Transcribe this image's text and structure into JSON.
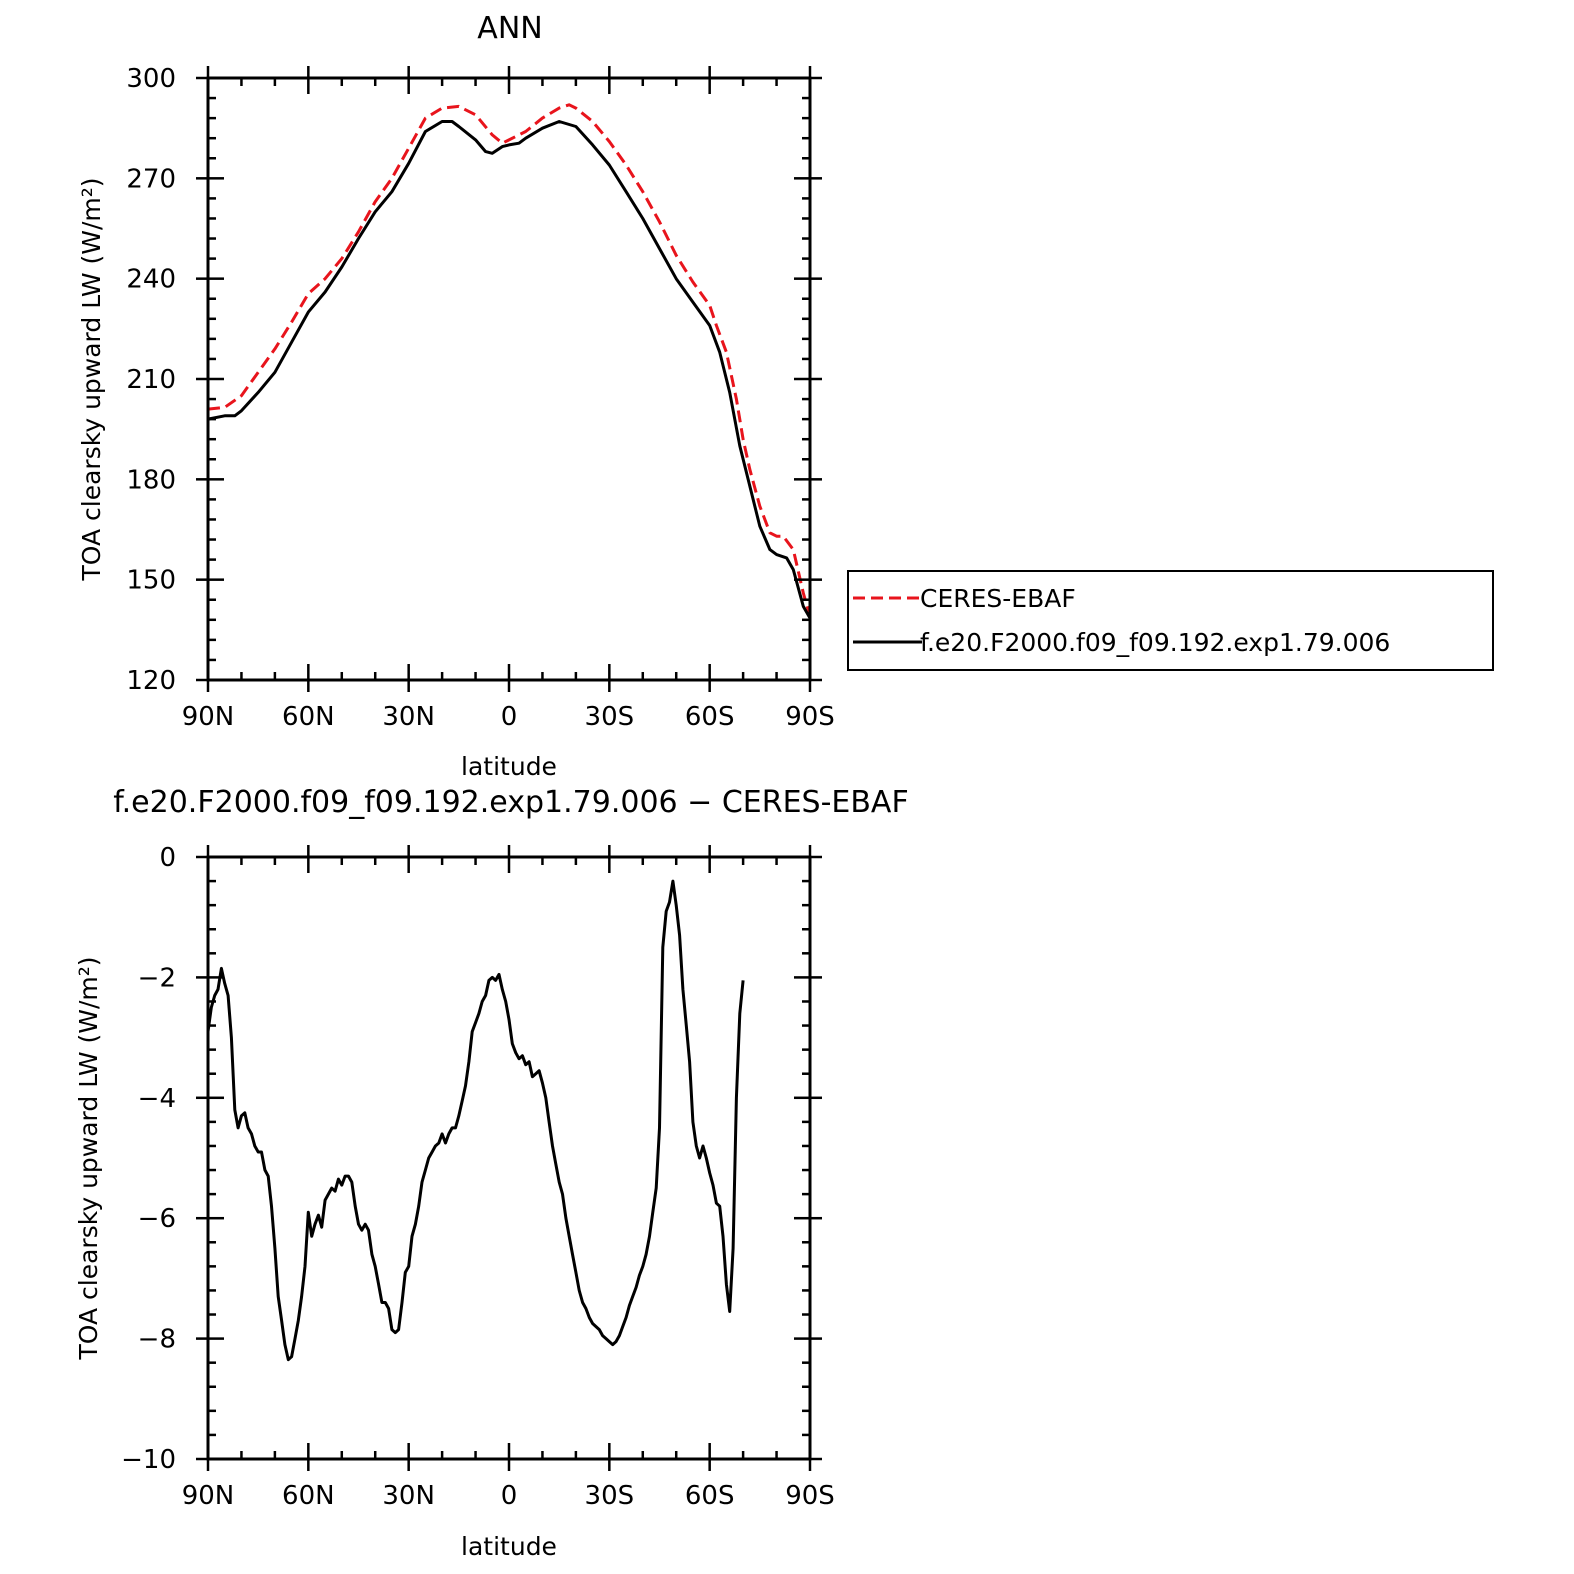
{
  "chart_data": [
    {
      "type": "line",
      "title": "ANN",
      "xlabel": "latitude",
      "ylabel": "TOA clearsky upward LW (W/m²)",
      "xlim": [
        90,
        -90
      ],
      "ylim": [
        120,
        300
      ],
      "x_tick_values": [
        90,
        60,
        30,
        0,
        -30,
        -60,
        -90
      ],
      "x_tick_labels": [
        "90N",
        "60N",
        "30N",
        "0",
        "30S",
        "60S",
        "90S"
      ],
      "y_ticks": [
        120,
        150,
        180,
        210,
        240,
        270,
        300
      ],
      "grid": false,
      "legend_position": "right",
      "series": [
        {
          "name": "CERES-EBAF",
          "color": "#e8141c",
          "dash": true,
          "points": [
            [
              90,
              201
            ],
            [
              85,
              201.5
            ],
            [
              80,
              205
            ],
            [
              75,
              212
            ],
            [
              70,
              219
            ],
            [
              65,
              227
            ],
            [
              60,
              235.5
            ],
            [
              55,
              240
            ],
            [
              50,
              246
            ],
            [
              45,
              254
            ],
            [
              40,
              263
            ],
            [
              35,
              270
            ],
            [
              30,
              279
            ],
            [
              25,
              288
            ],
            [
              20,
              291
            ],
            [
              15,
              291.5
            ],
            [
              10,
              289
            ],
            [
              5,
              283
            ],
            [
              2,
              280.5
            ],
            [
              0,
              281.5
            ],
            [
              -5,
              284
            ],
            [
              -10,
              288
            ],
            [
              -15,
              291
            ],
            [
              -18,
              292
            ],
            [
              -20,
              291
            ],
            [
              -25,
              287
            ],
            [
              -30,
              281
            ],
            [
              -35,
              274
            ],
            [
              -40,
              266
            ],
            [
              -45,
              257
            ],
            [
              -50,
              247
            ],
            [
              -55,
              239
            ],
            [
              -60,
              232
            ],
            [
              -62,
              226
            ],
            [
              -65,
              218
            ],
            [
              -68,
              204
            ],
            [
              -70,
              192
            ],
            [
              -72,
              183
            ],
            [
              -75,
              172
            ],
            [
              -78,
              164
            ],
            [
              -80,
              163
            ],
            [
              -82,
              163
            ],
            [
              -85,
              159
            ],
            [
              -88,
              146
            ],
            [
              -90,
              139
            ]
          ]
        },
        {
          "name": "f.e20.F2000.f09_f09.192.exp1.79.006",
          "color": "#000000",
          "dash": false,
          "points": [
            [
              90,
              198
            ],
            [
              85,
              199
            ],
            [
              82,
              199
            ],
            [
              80,
              200.5
            ],
            [
              75,
              206
            ],
            [
              70,
              212
            ],
            [
              65,
              221
            ],
            [
              60,
              230
            ],
            [
              55,
              236
            ],
            [
              50,
              243.5
            ],
            [
              45,
              252
            ],
            [
              40,
              260
            ],
            [
              35,
              266
            ],
            [
              30,
              274.5
            ],
            [
              25,
              284
            ],
            [
              20,
              287
            ],
            [
              17,
              287
            ],
            [
              15,
              285.5
            ],
            [
              10,
              281.5
            ],
            [
              7,
              278
            ],
            [
              5,
              277.5
            ],
            [
              2,
              279.5
            ],
            [
              0,
              280
            ],
            [
              -3,
              280.5
            ],
            [
              -5,
              282
            ],
            [
              -10,
              285
            ],
            [
              -15,
              287
            ],
            [
              -20,
              285.5
            ],
            [
              -25,
              280
            ],
            [
              -30,
              274
            ],
            [
              -35,
              266
            ],
            [
              -40,
              258
            ],
            [
              -45,
              249
            ],
            [
              -50,
              240
            ],
            [
              -55,
              233
            ],
            [
              -60,
              226
            ],
            [
              -63,
              218
            ],
            [
              -66,
              206
            ],
            [
              -69,
              190
            ],
            [
              -72,
              178
            ],
            [
              -75,
              166
            ],
            [
              -78,
              159
            ],
            [
              -80,
              157.5
            ],
            [
              -83,
              156.5
            ],
            [
              -85,
              153
            ],
            [
              -88,
              142
            ],
            [
              -90,
              138.5
            ]
          ]
        }
      ]
    },
    {
      "type": "line",
      "title": "f.e20.F2000.f09_f09.192.exp1.79.006 − CERES-EBAF",
      "xlabel": "latitude",
      "ylabel": "TOA clearsky upward LW (W/m²)",
      "xlim": [
        90,
        -90
      ],
      "ylim": [
        -10,
        0
      ],
      "x_tick_values": [
        90,
        60,
        30,
        0,
        -30,
        -60,
        -90
      ],
      "x_tick_labels": [
        "90N",
        "60N",
        "30N",
        "0",
        "30S",
        "60S",
        "90S"
      ],
      "y_ticks": [
        0,
        -2,
        -4,
        -6,
        -8,
        -10
      ],
      "y_tick_labels": [
        "0",
        "−2",
        "−4",
        "−6",
        "−8",
        "−10"
      ],
      "grid": false,
      "series": [
        {
          "color": "#000000",
          "points": [
            [
              90,
              -2.9
            ],
            [
              89,
              -2.5
            ],
            [
              88,
              -2.3
            ],
            [
              87,
              -2.2
            ],
            [
              86,
              -1.85
            ],
            [
              85,
              -2.1
            ],
            [
              84,
              -2.3
            ],
            [
              83,
              -3
            ],
            [
              82,
              -4.2
            ],
            [
              81,
              -4.5
            ],
            [
              80,
              -4.3
            ],
            [
              79,
              -4.25
            ],
            [
              78,
              -4.5
            ],
            [
              77,
              -4.6
            ],
            [
              76,
              -4.8
            ],
            [
              75,
              -4.9
            ],
            [
              74,
              -4.9
            ],
            [
              73,
              -5.2
            ],
            [
              72,
              -5.3
            ],
            [
              71,
              -5.8
            ],
            [
              70,
              -6.5
            ],
            [
              69,
              -7.3
            ],
            [
              68,
              -7.7
            ],
            [
              67,
              -8.1
            ],
            [
              66,
              -8.35
            ],
            [
              65,
              -8.3
            ],
            [
              64,
              -8.0
            ],
            [
              63,
              -7.7
            ],
            [
              62,
              -7.3
            ],
            [
              61,
              -6.8
            ],
            [
              60,
              -5.9
            ],
            [
              59,
              -6.3
            ],
            [
              58,
              -6.1
            ],
            [
              57,
              -5.95
            ],
            [
              56,
              -6.15
            ],
            [
              55,
              -5.7
            ],
            [
              54,
              -5.6
            ],
            [
              53,
              -5.5
            ],
            [
              52,
              -5.55
            ],
            [
              51,
              -5.35
            ],
            [
              50,
              -5.45
            ],
            [
              49,
              -5.3
            ],
            [
              48,
              -5.3
            ],
            [
              47,
              -5.4
            ],
            [
              46,
              -5.8
            ],
            [
              45,
              -6.1
            ],
            [
              44,
              -6.2
            ],
            [
              43,
              -6.1
            ],
            [
              42,
              -6.2
            ],
            [
              41,
              -6.6
            ],
            [
              40,
              -6.8
            ],
            [
              39,
              -7.1
            ],
            [
              38,
              -7.4
            ],
            [
              37,
              -7.4
            ],
            [
              36,
              -7.5
            ],
            [
              35,
              -7.85
            ],
            [
              34,
              -7.9
            ],
            [
              33,
              -7.85
            ],
            [
              32,
              -7.4
            ],
            [
              31,
              -6.9
            ],
            [
              30,
              -6.8
            ],
            [
              29,
              -6.3
            ],
            [
              28,
              -6.1
            ],
            [
              27,
              -5.8
            ],
            [
              26,
              -5.4
            ],
            [
              25,
              -5.2
            ],
            [
              24,
              -5.0
            ],
            [
              23,
              -4.9
            ],
            [
              22,
              -4.8
            ],
            [
              21,
              -4.75
            ],
            [
              20,
              -4.6
            ],
            [
              19,
              -4.75
            ],
            [
              18,
              -4.6
            ],
            [
              17,
              -4.5
            ],
            [
              16,
              -4.5
            ],
            [
              15,
              -4.3
            ],
            [
              14,
              -4.05
            ],
            [
              13,
              -3.8
            ],
            [
              12,
              -3.4
            ],
            [
              11,
              -2.9
            ],
            [
              10,
              -2.75
            ],
            [
              9,
              -2.6
            ],
            [
              8,
              -2.4
            ],
            [
              7,
              -2.3
            ],
            [
              6,
              -2.05
            ],
            [
              5,
              -2.0
            ],
            [
              4,
              -2.05
            ],
            [
              3,
              -1.95
            ],
            [
              2,
              -2.2
            ],
            [
              1,
              -2.4
            ],
            [
              0,
              -2.7
            ],
            [
              -1,
              -3.1
            ],
            [
              -2,
              -3.25
            ],
            [
              -3,
              -3.35
            ],
            [
              -4,
              -3.3
            ],
            [
              -5,
              -3.45
            ],
            [
              -6,
              -3.4
            ],
            [
              -7,
              -3.65
            ],
            [
              -8,
              -3.6
            ],
            [
              -9,
              -3.55
            ],
            [
              -10,
              -3.75
            ],
            [
              -11,
              -4.0
            ],
            [
              -12,
              -4.4
            ],
            [
              -13,
              -4.8
            ],
            [
              -14,
              -5.1
            ],
            [
              -15,
              -5.4
            ],
            [
              -16,
              -5.6
            ],
            [
              -17,
              -6.0
            ],
            [
              -18,
              -6.3
            ],
            [
              -19,
              -6.6
            ],
            [
              -20,
              -6.9
            ],
            [
              -21,
              -7.2
            ],
            [
              -22,
              -7.4
            ],
            [
              -23,
              -7.5
            ],
            [
              -24,
              -7.65
            ],
            [
              -25,
              -7.75
            ],
            [
              -26,
              -7.8
            ],
            [
              -27,
              -7.85
            ],
            [
              -28,
              -7.95
            ],
            [
              -29,
              -8.0
            ],
            [
              -30,
              -8.05
            ],
            [
              -31,
              -8.1
            ],
            [
              -32,
              -8.05
            ],
            [
              -33,
              -7.95
            ],
            [
              -34,
              -7.8
            ],
            [
              -35,
              -7.65
            ],
            [
              -36,
              -7.45
            ],
            [
              -37,
              -7.3
            ],
            [
              -38,
              -7.15
            ],
            [
              -39,
              -6.95
            ],
            [
              -40,
              -6.8
            ],
            [
              -41,
              -6.6
            ],
            [
              -42,
              -6.3
            ],
            [
              -43,
              -5.9
            ],
            [
              -44,
              -5.5
            ],
            [
              -45,
              -4.5
            ],
            [
              -46,
              -1.5
            ],
            [
              -47,
              -0.9
            ],
            [
              -48,
              -0.75
            ],
            [
              -49,
              -0.4
            ],
            [
              -50,
              -0.8
            ],
            [
              -51,
              -1.3
            ],
            [
              -52,
              -2.2
            ],
            [
              -53,
              -2.8
            ],
            [
              -54,
              -3.4
            ],
            [
              -55,
              -4.4
            ],
            [
              -56,
              -4.8
            ],
            [
              -57,
              -5.0
            ],
            [
              -58,
              -4.8
            ],
            [
              -59,
              -5.0
            ],
            [
              -60,
              -5.25
            ],
            [
              -61,
              -5.45
            ],
            [
              -62,
              -5.75
            ],
            [
              -63,
              -5.8
            ],
            [
              -64,
              -6.3
            ],
            [
              -65,
              -7.1
            ],
            [
              -66,
              -7.55
            ],
            [
              -67,
              -6.5
            ],
            [
              -68,
              -4.0
            ],
            [
              -69,
              -2.6
            ],
            [
              -70,
              -2.05
            ]
          ]
        }
      ]
    }
  ]
}
